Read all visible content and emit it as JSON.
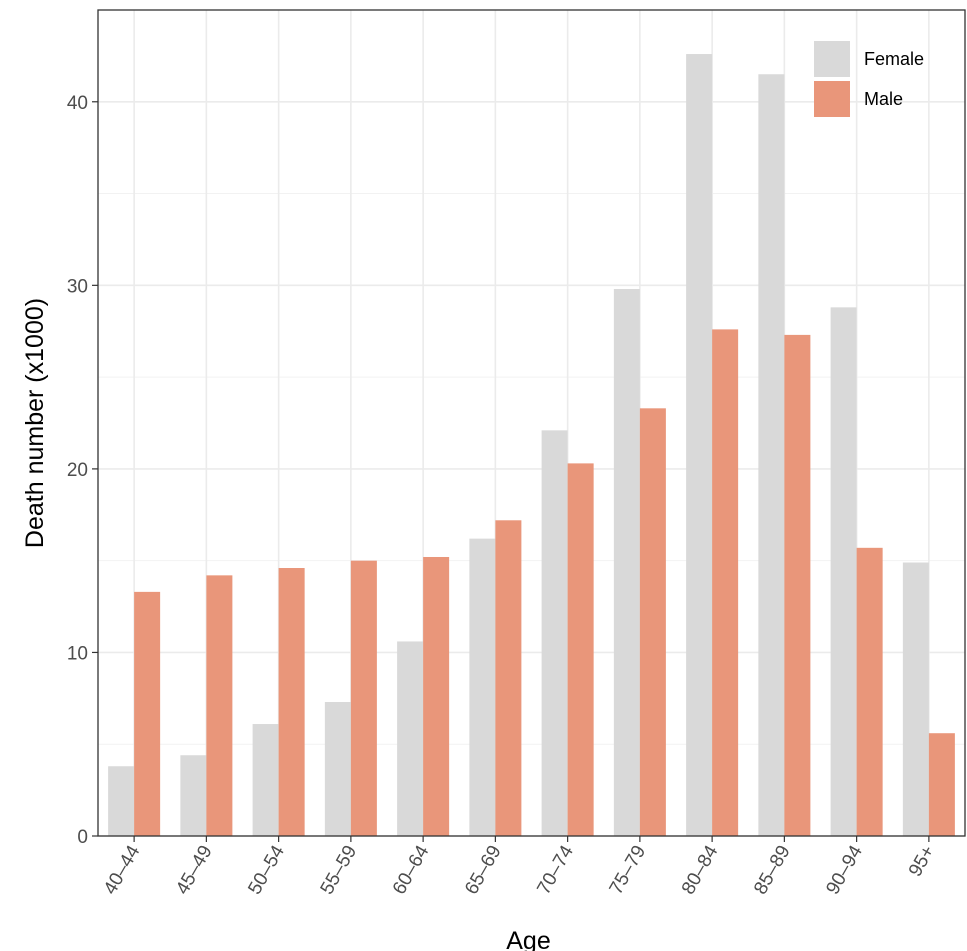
{
  "chart_data": {
    "type": "bar",
    "categories": [
      "40–44",
      "45–49",
      "50–54",
      "55–59",
      "60–64",
      "65–69",
      "70–74",
      "75–79",
      "80–84",
      "85–89",
      "90–94",
      "95+"
    ],
    "series": [
      {
        "name": "Female",
        "color": "#d9d9d9",
        "values": [
          3.8,
          4.4,
          6.1,
          7.3,
          10.6,
          16.2,
          22.1,
          29.8,
          42.6,
          41.5,
          28.8,
          14.9
        ]
      },
      {
        "name": "Male",
        "color": "#e9967a",
        "values": [
          13.3,
          14.2,
          14.6,
          15.0,
          15.2,
          17.2,
          20.3,
          23.3,
          27.6,
          27.3,
          15.7,
          5.6
        ]
      }
    ],
    "title": "",
    "xlabel": "Age",
    "ylabel": "Death number (x1000)",
    "ylim": [
      0,
      45
    ],
    "yticks": [
      0,
      10,
      20,
      30,
      40
    ],
    "grid": true,
    "legend_position": "top-right"
  }
}
